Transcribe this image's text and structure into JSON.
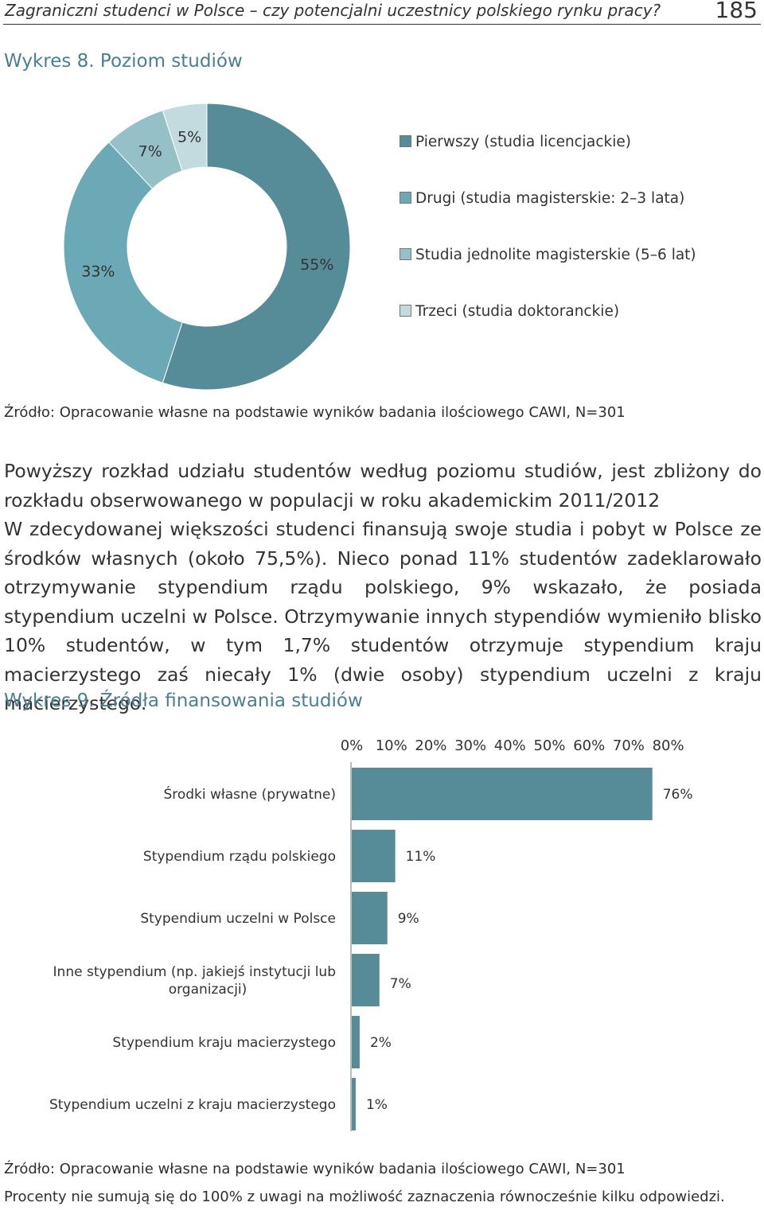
{
  "header": {
    "title": "Zagraniczni studenci w Polsce – czy potencjalni uczestnicy polskiego rynku pracy?",
    "page_number": "185"
  },
  "figure8": {
    "title": "Wykres 8. Poziom studiów",
    "source": "Źródło: Opracowanie własne na podstawie wyników badania ilościowego CAWI, N=301"
  },
  "body": {
    "paragraph1": "Powyższy rozkład udziału studentów według poziomu studiów, jest zbliżony do rozkładu obserwowanego w populacji w roku akademickim 2011/2012",
    "paragraph2": "W zdecydowanej większości studenci finansują swoje studia i pobyt w Polsce ze środków własnych (około 75,5%). Nieco ponad 11% studentów zadeklarowało otrzymywanie stypendium rządu polskiego, 9% wskazało, że posiada stypendium uczelni w Polsce. Otrzymywanie innych stypendiów wymieniło blisko 10% studentów, w tym 1,7% studentów otrzymuje stypendium kraju macierzystego zaś niecały 1% (dwie osoby) stypendium uczelni z kraju macierzystego."
  },
  "figure9": {
    "title": "Wykres 9. Źródła finansowania studiów",
    "source": "Źródło: Opracowanie własne na podstawie wyników badania ilościowego CAWI, N=301",
    "note": "Procenty nie sumują się do 100% z uwagi na możliwość zaznaczenia równocześnie kilku odpowiedzi."
  },
  "chart_data": [
    {
      "type": "pie",
      "categories": [
        "Pierwszy (studia licencjackie)",
        "Drugi (studia magisterskie: 2–3 lata)",
        "Studia jednolite magisterskie (5–6 lat)",
        "Trzeci (studia doktoranckie)"
      ],
      "values": [
        55,
        33,
        7,
        5
      ],
      "labels": [
        "55%",
        "33%",
        "7%",
        "5%"
      ],
      "colors": [
        "#568c98",
        "#6aa9b5",
        "#95c0c8",
        "#c3dbdf"
      ],
      "legend": "right"
    },
    {
      "type": "bar",
      "orientation": "horizontal",
      "categories": [
        "Środki własne (prywatne)",
        "Stypendium rządu polskiego",
        "Stypendium uczelni w Polsce",
        "Inne stypendium (np. jakiejś instytucji lub organizacji)",
        "Stypendium kraju macierzystego",
        "Stypendium uczelni z kraju macierzystego"
      ],
      "values": [
        76,
        11,
        9,
        7,
        2,
        1
      ],
      "labels": [
        "76%",
        "11%",
        "9%",
        "7%",
        "2%",
        "1%"
      ],
      "xlim": [
        0,
        80
      ],
      "xticks": [
        "0%",
        "10%",
        "20%",
        "30%",
        "40%",
        "50%",
        "60%",
        "70%",
        "80%"
      ],
      "axis_position": "top",
      "color": "#568c98"
    }
  ]
}
